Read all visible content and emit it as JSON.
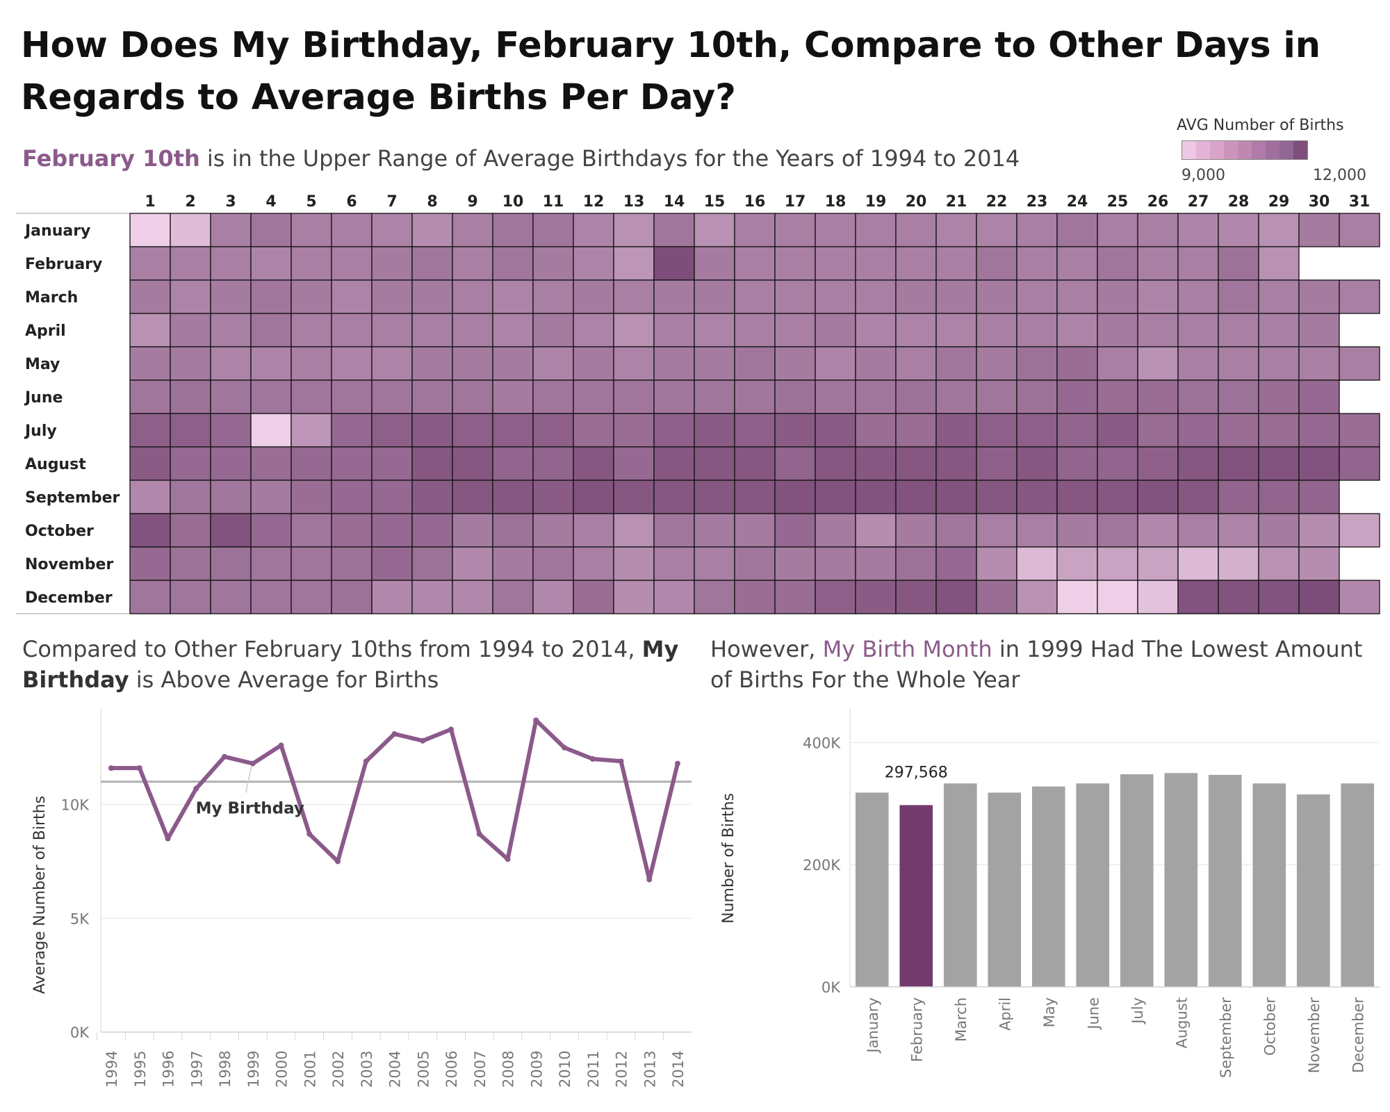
{
  "title": "How Does My Birthday, February 10th, Compare to Other Days in Regards to Average Births Per Day?",
  "heatmap_subtitle": {
    "highlight": "February 10th",
    "rest": " is in the Upper Range of Average Birthdays for the Years of 1994 to 2014"
  },
  "legend": {
    "title": "AVG Number of Births",
    "min_label": "9,000",
    "max_label": "12,000",
    "colors": [
      "#ecc8e4",
      "#e4b4d6",
      "#d9a4c9",
      "#cb95bb",
      "#bf88b0",
      "#b07ba8",
      "#a06f9e",
      "#916594",
      "#7e4f7b"
    ]
  },
  "line_title": {
    "part1": "Compared to Other February 10ths from 1994 to 2014, ",
    "bold1": "My Birthday",
    "part2": " is Above Average for Births"
  },
  "bar_title": {
    "part1": "However, ",
    "highlight": "My Birth Month",
    "part2": " in 1999 Had The Lowest Amount of Births For the Whole Year"
  },
  "colors": {
    "line": "#8b5a8b",
    "avg_line": "#b0b0b0",
    "bar": "#a3a3a3",
    "bar_highlight": "#733a6e",
    "grid": "#ececec"
  },
  "chart_data": [
    {
      "type": "heatmap",
      "title": "AVG Number of Births",
      "months": [
        "January",
        "February",
        "March",
        "April",
        "May",
        "June",
        "July",
        "August",
        "September",
        "October",
        "November",
        "December"
      ],
      "days": [
        "1",
        "2",
        "3",
        "4",
        "5",
        "6",
        "7",
        "8",
        "9",
        "10",
        "11",
        "12",
        "13",
        "14",
        "15",
        "16",
        "17",
        "18",
        "19",
        "20",
        "21",
        "22",
        "23",
        "24",
        "25",
        "26",
        "27",
        "28",
        "29",
        "30",
        "31"
      ],
      "value_range": [
        9000,
        12000
      ],
      "values": [
        [
          9000,
          9400,
          10800,
          11000,
          10800,
          10800,
          10700,
          10500,
          10800,
          11000,
          11000,
          10700,
          10400,
          11000,
          10400,
          10800,
          10800,
          10800,
          10800,
          10800,
          10700,
          10700,
          10800,
          11000,
          10800,
          10800,
          10700,
          10600,
          10400,
          10900,
          10800
        ],
        [
          10800,
          10800,
          10800,
          10700,
          10800,
          10800,
          10900,
          11000,
          10800,
          11000,
          10900,
          10700,
          10300,
          11900,
          10900,
          10800,
          10800,
          10800,
          10800,
          10800,
          10800,
          11000,
          10800,
          10800,
          11000,
          10800,
          10800,
          11100,
          10400,
          null,
          null
        ],
        [
          10900,
          10700,
          10900,
          11000,
          10900,
          10700,
          10900,
          10900,
          10800,
          10700,
          10800,
          10900,
          10800,
          10900,
          10900,
          10800,
          10800,
          10800,
          10800,
          10900,
          10900,
          10900,
          10800,
          10800,
          10900,
          10700,
          10800,
          11000,
          10800,
          10900,
          10800
        ],
        [
          10400,
          10900,
          10800,
          11000,
          10800,
          10800,
          10800,
          10800,
          10800,
          10700,
          10900,
          10700,
          10400,
          10800,
          10700,
          10800,
          10800,
          10900,
          10700,
          10700,
          10700,
          10800,
          10800,
          10700,
          10900,
          10800,
          10800,
          10800,
          10800,
          10900,
          null
        ],
        [
          10900,
          10900,
          10700,
          10700,
          10800,
          10700,
          10700,
          10900,
          10900,
          10900,
          10700,
          10900,
          10700,
          10900,
          10900,
          11000,
          10900,
          10700,
          10900,
          10800,
          11000,
          10900,
          11100,
          11200,
          10800,
          10400,
          10800,
          10800,
          10800,
          10800,
          10800
        ],
        [
          11000,
          11100,
          11000,
          11000,
          11000,
          11000,
          11000,
          11000,
          11000,
          10900,
          11000,
          11000,
          11000,
          11000,
          11000,
          11000,
          11100,
          11000,
          11000,
          11100,
          11000,
          11000,
          11100,
          11300,
          11200,
          11200,
          11100,
          11100,
          11200,
          11300,
          null
        ],
        [
          11500,
          11500,
          11300,
          9000,
          10300,
          11300,
          11500,
          11600,
          11500,
          11500,
          11500,
          11200,
          11200,
          11500,
          11600,
          11500,
          11600,
          11600,
          11200,
          11200,
          11600,
          11500,
          11500,
          11400,
          11600,
          11200,
          11300,
          11200,
          11200,
          11300,
          11200
        ],
        [
          11600,
          11300,
          11300,
          11200,
          11300,
          11300,
          11300,
          11700,
          11700,
          11400,
          11400,
          11700,
          11300,
          11700,
          11700,
          11700,
          11400,
          11700,
          11700,
          11700,
          11700,
          11500,
          11700,
          11400,
          11400,
          11500,
          11700,
          11800,
          11800,
          11800,
          11400
        ],
        [
          10600,
          11000,
          11000,
          10900,
          11200,
          11300,
          11300,
          11600,
          11700,
          11700,
          11600,
          11800,
          11700,
          11700,
          11700,
          11700,
          11800,
          11800,
          11800,
          11800,
          11800,
          11700,
          11700,
          11700,
          11700,
          11800,
          11700,
          11400,
          11400,
          11400,
          null
        ],
        [
          11800,
          11200,
          11800,
          11300,
          11000,
          11200,
          11300,
          11300,
          10900,
          11100,
          10900,
          10800,
          10400,
          11000,
          10900,
          10900,
          11300,
          10900,
          10500,
          10900,
          11000,
          10800,
          10800,
          10900,
          11000,
          10600,
          10800,
          10700,
          10900,
          10500,
          10000
        ],
        [
          11300,
          11100,
          11100,
          11000,
          11000,
          11100,
          11300,
          11100,
          10600,
          10900,
          11000,
          10800,
          10500,
          10800,
          10800,
          11000,
          10900,
          10900,
          10900,
          11100,
          11300,
          10500,
          9500,
          10000,
          10000,
          10000,
          9500,
          9700,
          10400,
          10500,
          null
        ],
        [
          11000,
          11000,
          11000,
          11000,
          11000,
          11100,
          10600,
          10600,
          10600,
          11000,
          10600,
          11200,
          10500,
          10600,
          11000,
          11200,
          11200,
          11500,
          11600,
          11700,
          11800,
          11200,
          10400,
          9000,
          8900,
          9300,
          11800,
          11800,
          11800,
          11900,
          10600
        ]
      ]
    },
    {
      "type": "line",
      "x": [
        "1994",
        "1995",
        "1996",
        "1997",
        "1998",
        "1999",
        "2000",
        "2001",
        "2002",
        "2003",
        "2004",
        "2005",
        "2006",
        "2007",
        "2008",
        "2009",
        "2010",
        "2011",
        "2012",
        "2013",
        "2014"
      ],
      "values": [
        11600,
        11600,
        8500,
        10700,
        12100,
        11800,
        12600,
        8700,
        7500,
        11900,
        13100,
        12800,
        13300,
        8700,
        7600,
        13700,
        12500,
        12000,
        11900,
        6700,
        11800
      ],
      "average_line": 11000,
      "annotation": {
        "label": "My Birthday",
        "x": "1999"
      },
      "ylabel": "Average Number of Births",
      "yticks": [
        0,
        5000,
        10000
      ],
      "ytick_labels": [
        "0K",
        "5K",
        "10K"
      ],
      "ylim": [
        0,
        14200
      ]
    },
    {
      "type": "bar",
      "categories": [
        "January",
        "February",
        "March",
        "April",
        "May",
        "June",
        "July",
        "August",
        "September",
        "October",
        "November",
        "December"
      ],
      "values": [
        318000,
        297568,
        333000,
        318000,
        328000,
        333000,
        348000,
        350000,
        347000,
        333000,
        315000,
        333000
      ],
      "highlight": "February",
      "data_label": "297,568",
      "ylabel": "Number of Births",
      "yticks": [
        0,
        200000,
        400000
      ],
      "ytick_labels": [
        "0K",
        "200K",
        "400K"
      ],
      "ylim": [
        0,
        455000
      ]
    }
  ]
}
